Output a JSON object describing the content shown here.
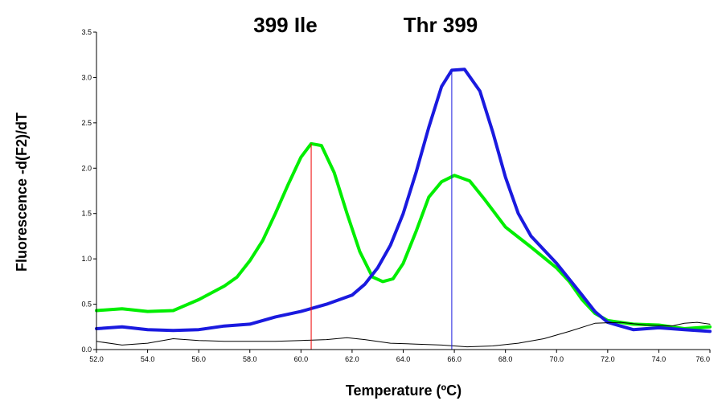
{
  "chart_data": {
    "type": "line",
    "title_labels": [
      "399 Ile",
      "Thr 399"
    ],
    "xlabel": "Temperature (ºC)",
    "ylabel": "Fluorescence -d(F2)/dT",
    "xlim": [
      52.0,
      76.0
    ],
    "ylim": [
      0.0,
      3.5
    ],
    "x_ticks": [
      "52.0",
      "54.0",
      "56.0",
      "58.0",
      "60.0",
      "62.0",
      "64.0",
      "66.0",
      "68.0",
      "70.0",
      "72.0",
      "74.0",
      "76.0"
    ],
    "y_ticks": [
      "0.0",
      "0.5",
      "1.0",
      "1.5",
      "2.0",
      "2.5",
      "3.0",
      "3.5"
    ],
    "grid": false,
    "series": [
      {
        "color": "#00ee00",
        "width": 4,
        "points": [
          [
            52.0,
            0.43
          ],
          [
            53.0,
            0.45
          ],
          [
            54.0,
            0.42
          ],
          [
            55.0,
            0.43
          ],
          [
            56.0,
            0.55
          ],
          [
            57.0,
            0.7
          ],
          [
            57.5,
            0.8
          ],
          [
            58.0,
            0.98
          ],
          [
            58.5,
            1.2
          ],
          [
            59.0,
            1.5
          ],
          [
            59.5,
            1.82
          ],
          [
            60.0,
            2.12
          ],
          [
            60.4,
            2.27
          ],
          [
            60.8,
            2.25
          ],
          [
            61.3,
            1.95
          ],
          [
            61.8,
            1.5
          ],
          [
            62.3,
            1.08
          ],
          [
            62.8,
            0.8
          ],
          [
            63.2,
            0.75
          ],
          [
            63.6,
            0.78
          ],
          [
            64.0,
            0.95
          ],
          [
            64.5,
            1.3
          ],
          [
            65.0,
            1.68
          ],
          [
            65.5,
            1.85
          ],
          [
            66.0,
            1.92
          ],
          [
            66.6,
            1.86
          ],
          [
            67.2,
            1.65
          ],
          [
            68.0,
            1.35
          ],
          [
            69.0,
            1.13
          ],
          [
            70.0,
            0.9
          ],
          [
            70.5,
            0.75
          ],
          [
            71.0,
            0.55
          ],
          [
            71.5,
            0.4
          ],
          [
            72.0,
            0.32
          ],
          [
            73.0,
            0.28
          ],
          [
            74.0,
            0.27
          ],
          [
            75.0,
            0.23
          ],
          [
            76.0,
            0.25
          ]
        ]
      },
      {
        "color": "#1a1adf",
        "width": 4,
        "points": [
          [
            52.0,
            0.23
          ],
          [
            53.0,
            0.25
          ],
          [
            54.0,
            0.22
          ],
          [
            55.0,
            0.21
          ],
          [
            56.0,
            0.22
          ],
          [
            57.0,
            0.26
          ],
          [
            58.0,
            0.28
          ],
          [
            59.0,
            0.36
          ],
          [
            60.0,
            0.42
          ],
          [
            61.0,
            0.5
          ],
          [
            62.0,
            0.6
          ],
          [
            62.5,
            0.72
          ],
          [
            63.0,
            0.9
          ],
          [
            63.5,
            1.15
          ],
          [
            64.0,
            1.5
          ],
          [
            64.5,
            1.95
          ],
          [
            65.0,
            2.45
          ],
          [
            65.5,
            2.9
          ],
          [
            65.9,
            3.08
          ],
          [
            66.4,
            3.09
          ],
          [
            67.0,
            2.85
          ],
          [
            67.5,
            2.4
          ],
          [
            68.0,
            1.9
          ],
          [
            68.5,
            1.5
          ],
          [
            69.0,
            1.25
          ],
          [
            70.0,
            0.95
          ],
          [
            71.0,
            0.6
          ],
          [
            71.5,
            0.42
          ],
          [
            72.0,
            0.3
          ],
          [
            73.0,
            0.22
          ],
          [
            74.0,
            0.24
          ],
          [
            75.0,
            0.22
          ],
          [
            76.0,
            0.2
          ]
        ]
      },
      {
        "color": "#000000",
        "width": 1,
        "points": [
          [
            52.0,
            0.09
          ],
          [
            53.0,
            0.05
          ],
          [
            54.0,
            0.07
          ],
          [
            55.0,
            0.12
          ],
          [
            56.0,
            0.1
          ],
          [
            57.0,
            0.09
          ],
          [
            58.0,
            0.09
          ],
          [
            59.0,
            0.09
          ],
          [
            60.0,
            0.1
          ],
          [
            61.0,
            0.11
          ],
          [
            61.8,
            0.13
          ],
          [
            62.5,
            0.11
          ],
          [
            63.5,
            0.07
          ],
          [
            64.5,
            0.06
          ],
          [
            65.5,
            0.05
          ],
          [
            66.5,
            0.03
          ],
          [
            67.5,
            0.04
          ],
          [
            68.5,
            0.07
          ],
          [
            69.5,
            0.12
          ],
          [
            70.5,
            0.2
          ],
          [
            71.5,
            0.29
          ],
          [
            72.5,
            0.3
          ],
          [
            73.5,
            0.27
          ],
          [
            74.5,
            0.26
          ],
          [
            75.0,
            0.29
          ],
          [
            75.5,
            0.3
          ],
          [
            76.0,
            0.28
          ]
        ]
      }
    ],
    "markers": [
      {
        "x": 60.4,
        "color": "#ee0000"
      },
      {
        "x": 65.9,
        "color": "#1a1adf"
      }
    ]
  }
}
